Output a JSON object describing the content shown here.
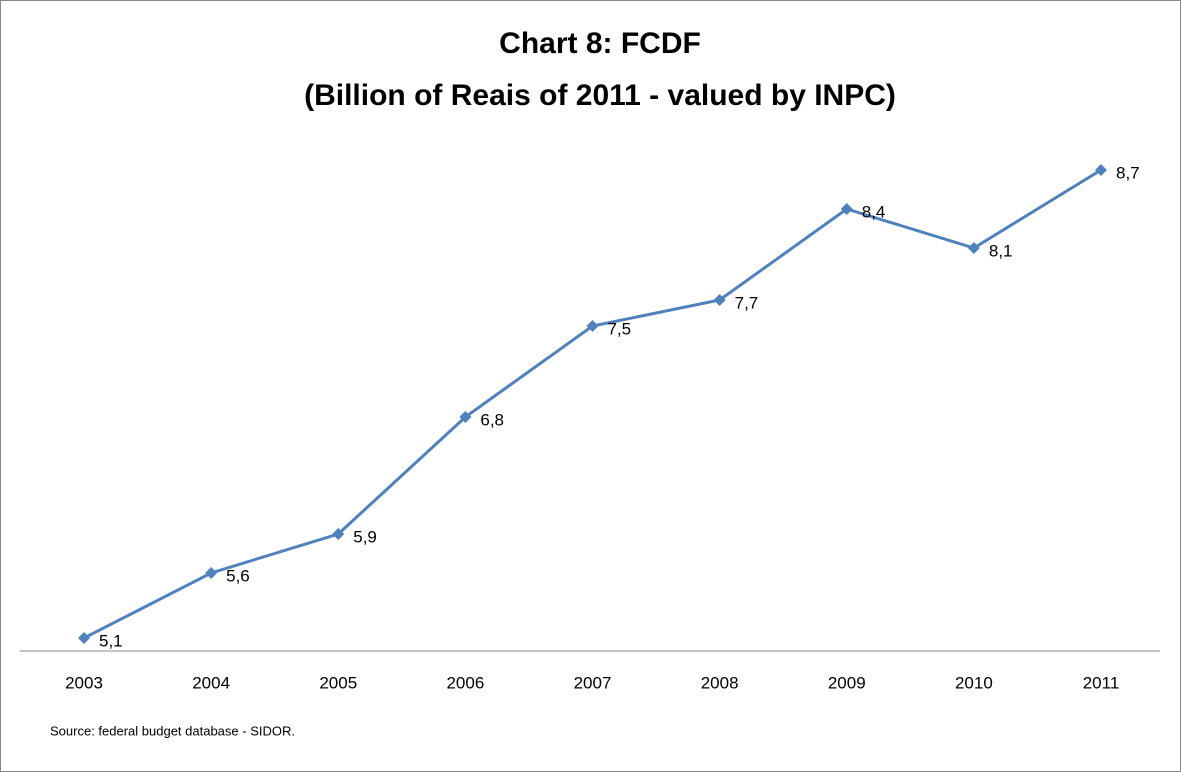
{
  "chart_data": {
    "type": "line",
    "title": "Chart 8: FCDF",
    "subtitle": "(Billion of Reais of 2011 - valued by INPC)",
    "categories": [
      "2003",
      "2004",
      "2005",
      "2006",
      "2007",
      "2008",
      "2009",
      "2010",
      "2011"
    ],
    "values": [
      5.1,
      5.6,
      5.9,
      6.8,
      7.5,
      7.7,
      8.4,
      8.1,
      8.7
    ],
    "value_labels": [
      "5,1",
      "5,6",
      "5,9",
      "6,8",
      "7,5",
      "7,7",
      "8,4",
      "8,1",
      "8,7"
    ],
    "color": "#4f81bd",
    "ylim": [
      5,
      9
    ],
    "source": "Source: federal budget database - SIDOR."
  }
}
